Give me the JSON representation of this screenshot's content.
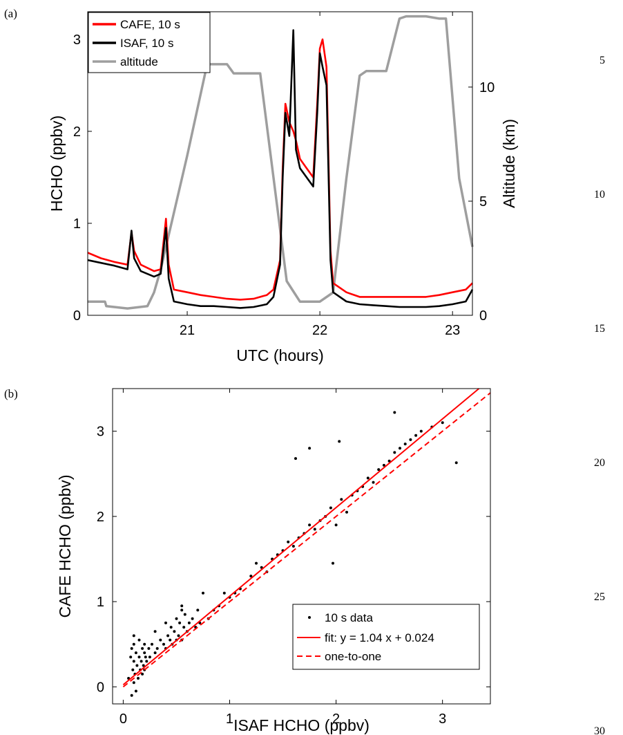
{
  "line_numbers": [
    "5",
    "10",
    "15",
    "20",
    "25",
    "30"
  ],
  "chart_data": [
    {
      "panel_label": "(a)",
      "type": "line",
      "xlabel": "UTC (hours)",
      "ylabel": "HCHO (ppbv)",
      "y2label": "Altitude (km)",
      "xlim": [
        20.25,
        23.15
      ],
      "ylim": [
        0,
        3.3
      ],
      "y2lim": [
        0,
        13.3
      ],
      "xticks": [
        "21",
        "22",
        "23"
      ],
      "yticks": [
        "0",
        "1",
        "2",
        "3"
      ],
      "y2ticks": [
        "0",
        "5",
        "10"
      ],
      "legend_position": "top-left",
      "series": [
        {
          "name": "CAFE, 10 s",
          "color": "#ff0000",
          "axis": "left",
          "x": [
            20.25,
            20.35,
            20.45,
            20.55,
            20.58,
            20.6,
            20.65,
            20.75,
            20.8,
            20.84,
            20.86,
            20.9,
            21.0,
            21.1,
            21.2,
            21.3,
            21.4,
            21.5,
            21.6,
            21.65,
            21.7,
            21.72,
            21.74,
            21.77,
            21.8,
            21.82,
            21.85,
            21.9,
            21.95,
            21.98,
            22.0,
            22.02,
            22.05,
            22.08,
            22.1,
            22.2,
            22.3,
            22.4,
            22.5,
            22.6,
            22.7,
            22.8,
            22.9,
            23.0,
            23.1,
            23.15
          ],
          "y": [
            0.68,
            0.62,
            0.58,
            0.55,
            0.9,
            0.7,
            0.55,
            0.48,
            0.5,
            1.05,
            0.55,
            0.28,
            0.25,
            0.22,
            0.2,
            0.18,
            0.17,
            0.18,
            0.22,
            0.28,
            0.6,
            1.6,
            2.3,
            2.1,
            2.0,
            1.9,
            1.7,
            1.6,
            1.5,
            2.3,
            2.9,
            3.0,
            2.7,
            0.7,
            0.35,
            0.25,
            0.2,
            0.2,
            0.2,
            0.2,
            0.2,
            0.2,
            0.22,
            0.25,
            0.28,
            0.35
          ]
        },
        {
          "name": "ISAF, 10 s",
          "color": "#000000",
          "axis": "left",
          "x": [
            20.25,
            20.35,
            20.45,
            20.55,
            20.58,
            20.6,
            20.65,
            20.75,
            20.8,
            20.84,
            20.86,
            20.9,
            21.0,
            21.1,
            21.2,
            21.3,
            21.4,
            21.5,
            21.6,
            21.65,
            21.7,
            21.72,
            21.74,
            21.77,
            21.8,
            21.82,
            21.85,
            21.9,
            21.95,
            21.98,
            22.0,
            22.02,
            22.05,
            22.08,
            22.1,
            22.2,
            22.3,
            22.4,
            22.5,
            22.6,
            22.7,
            22.8,
            22.9,
            23.0,
            23.1,
            23.15
          ],
          "y": [
            0.6,
            0.57,
            0.54,
            0.5,
            0.92,
            0.62,
            0.48,
            0.42,
            0.45,
            0.95,
            0.4,
            0.15,
            0.12,
            0.1,
            0.1,
            0.09,
            0.08,
            0.09,
            0.12,
            0.2,
            0.55,
            1.5,
            2.2,
            1.95,
            3.1,
            1.8,
            1.6,
            1.5,
            1.4,
            2.2,
            2.85,
            2.7,
            2.5,
            0.6,
            0.25,
            0.15,
            0.12,
            0.11,
            0.1,
            0.09,
            0.09,
            0.09,
            0.1,
            0.12,
            0.15,
            0.28
          ]
        },
        {
          "name": "altitude",
          "color": "#9e9e9e",
          "axis": "right",
          "x": [
            20.25,
            20.38,
            20.39,
            20.55,
            20.7,
            20.75,
            20.8,
            21.0,
            21.15,
            21.3,
            21.35,
            21.45,
            21.55,
            21.75,
            21.85,
            22.0,
            22.1,
            22.2,
            22.3,
            22.35,
            22.4,
            22.5,
            22.6,
            22.65,
            22.75,
            22.8,
            22.9,
            22.95,
            23.05,
            23.15
          ],
          "y": [
            0.6,
            0.6,
            0.4,
            0.3,
            0.4,
            1.0,
            2.0,
            7.0,
            11.0,
            11.0,
            10.6,
            10.6,
            10.6,
            1.5,
            0.6,
            0.6,
            1.0,
            6.0,
            10.5,
            10.7,
            10.7,
            10.7,
            13.0,
            13.1,
            13.1,
            13.1,
            13.0,
            13.0,
            6.0,
            3.0
          ]
        }
      ]
    },
    {
      "panel_label": "(b)",
      "type": "scatter",
      "xlabel": "ISAF HCHO (ppbv)",
      "ylabel": "CAFE HCHO (ppbv)",
      "xlim": [
        -0.1,
        3.45
      ],
      "ylim": [
        -0.2,
        3.5
      ],
      "xticks": [
        "0",
        "1",
        "2",
        "3"
      ],
      "yticks": [
        "0",
        "1",
        "2",
        "3"
      ],
      "legend_position": "bottom-right",
      "fit": {
        "slope": 1.04,
        "intercept": 0.024
      },
      "series": [
        {
          "name": "10 s data",
          "color": "#000000",
          "marker": "dot"
        },
        {
          "name": "fit: y = 1.04 x + 0.024",
          "color": "#ff0000",
          "style": "solid"
        },
        {
          "name": "one-to-one",
          "color": "#ff0000",
          "style": "dashed"
        }
      ],
      "points": {
        "x": [
          0.05,
          0.07,
          0.08,
          0.08,
          0.09,
          0.1,
          0.1,
          0.1,
          0.11,
          0.12,
          0.12,
          0.13,
          0.14,
          0.15,
          0.15,
          0.16,
          0.17,
          0.18,
          0.18,
          0.19,
          0.2,
          0.2,
          0.21,
          0.22,
          0.24,
          0.25,
          0.27,
          0.3,
          0.32,
          0.35,
          0.38,
          0.4,
          0.42,
          0.44,
          0.45,
          0.46,
          0.48,
          0.5,
          0.5,
          0.52,
          0.53,
          0.55,
          0.55,
          0.57,
          0.58,
          0.6,
          0.62,
          0.65,
          0.68,
          0.7,
          0.72,
          0.75,
          0.8,
          0.85,
          0.9,
          0.95,
          1.0,
          1.05,
          1.1,
          1.2,
          1.25,
          1.3,
          1.35,
          1.4,
          1.45,
          1.5,
          1.55,
          1.6,
          1.65,
          1.7,
          1.75,
          1.8,
          1.85,
          1.9,
          1.95,
          2.0,
          2.05,
          2.1,
          2.15,
          2.2,
          2.25,
          2.3,
          2.35,
          2.4,
          2.45,
          2.5,
          2.55,
          2.6,
          2.65,
          2.7,
          2.75,
          2.8,
          2.9,
          3.0,
          3.13,
          0.1,
          0.2,
          0.3,
          0.4,
          0.55,
          1.62,
          1.97,
          2.03,
          2.55,
          1.75
        ],
        "y": [
          0.1,
          0.35,
          -0.1,
          0.45,
          0.2,
          0.05,
          0.3,
          0.5,
          0.15,
          -0.05,
          0.4,
          0.25,
          0.1,
          0.35,
          0.55,
          0.2,
          0.3,
          0.15,
          0.45,
          0.25,
          0.2,
          0.4,
          0.35,
          0.3,
          0.45,
          0.35,
          0.5,
          0.4,
          0.45,
          0.55,
          0.5,
          0.45,
          0.6,
          0.55,
          0.7,
          0.5,
          0.65,
          0.55,
          0.8,
          0.6,
          0.75,
          0.55,
          0.9,
          0.7,
          0.85,
          0.65,
          0.75,
          0.8,
          0.7,
          0.9,
          0.75,
          1.1,
          0.8,
          0.9,
          0.95,
          1.1,
          1.05,
          1.1,
          1.15,
          1.3,
          1.45,
          1.4,
          1.35,
          1.5,
          1.55,
          1.6,
          1.7,
          1.65,
          1.75,
          1.8,
          1.9,
          1.85,
          1.95,
          2.0,
          2.1,
          1.9,
          2.2,
          2.05,
          2.25,
          2.3,
          2.35,
          2.45,
          2.4,
          2.55,
          2.6,
          2.65,
          2.75,
          2.8,
          2.85,
          2.9,
          2.95,
          3.0,
          3.05,
          3.1,
          2.63,
          0.6,
          0.5,
          0.65,
          0.75,
          0.95,
          2.68,
          1.45,
          2.88,
          3.22,
          2.8
        ]
      }
    }
  ]
}
